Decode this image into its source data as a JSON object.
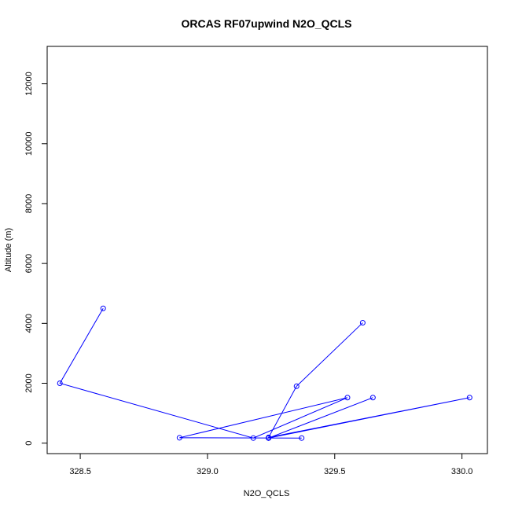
{
  "chart_data": {
    "type": "line",
    "title": "ORCAS RF07upwind N2O_QCLS",
    "xlabel": "N2O_QCLS",
    "ylabel": "Altitude (m)",
    "xlim": [
      328.37,
      330.1
    ],
    "ylim": [
      -350,
      13250
    ],
    "xticks": [
      328.5,
      329.0,
      329.5,
      330.0
    ],
    "xtick_labels": [
      "328.5",
      "329.0",
      "329.5",
      "330.0"
    ],
    "yticks": [
      0,
      2000,
      4000,
      6000,
      8000,
      10000,
      12000
    ],
    "ytick_labels": [
      "0",
      "2000",
      "4000",
      "6000",
      "8000",
      "10000",
      "12000"
    ],
    "grid": false,
    "markers": "open-circle",
    "line_color": "#0000ff",
    "series": [
      {
        "x": [
          328.59,
          328.42,
          329.18,
          329.55,
          328.89,
          329.37,
          329.24,
          329.65,
          329.24,
          330.03,
          329.24,
          329.35,
          329.61
        ],
        "y": [
          4500,
          2000,
          170,
          1520,
          180,
          170,
          170,
          1520,
          170,
          1520,
          190,
          1900,
          4020
        ]
      }
    ]
  }
}
